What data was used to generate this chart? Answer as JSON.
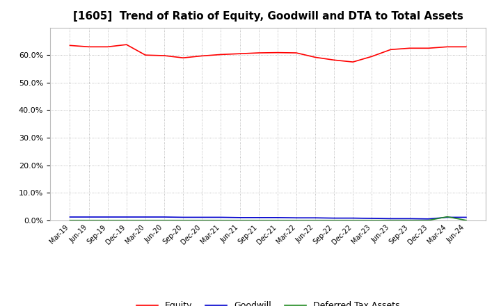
{
  "title": "[1605]  Trend of Ratio of Equity, Goodwill and DTA to Total Assets",
  "labels": [
    "Mar-19",
    "Jun-19",
    "Sep-19",
    "Dec-19",
    "Mar-20",
    "Jun-20",
    "Sep-20",
    "Dec-20",
    "Mar-21",
    "Jun-21",
    "Sep-21",
    "Dec-21",
    "Mar-22",
    "Jun-22",
    "Sep-22",
    "Dec-22",
    "Mar-23",
    "Jun-23",
    "Sep-23",
    "Dec-23",
    "Mar-24",
    "Jun-24"
  ],
  "equity": [
    0.635,
    0.63,
    0.63,
    0.638,
    0.6,
    0.598,
    0.59,
    0.597,
    0.602,
    0.605,
    0.608,
    0.609,
    0.608,
    0.592,
    0.582,
    0.575,
    0.595,
    0.62,
    0.625,
    0.625,
    0.63,
    0.63
  ],
  "goodwill": [
    0.012,
    0.012,
    0.012,
    0.012,
    0.012,
    0.012,
    0.011,
    0.011,
    0.011,
    0.01,
    0.01,
    0.01,
    0.009,
    0.009,
    0.008,
    0.008,
    0.007,
    0.006,
    0.006,
    0.005,
    0.011,
    0.011
  ],
  "dta": [
    0.0,
    0.0,
    0.0,
    0.0,
    0.0,
    0.0,
    0.0,
    0.0,
    0.0,
    0.0,
    0.0,
    0.0,
    0.0,
    0.0,
    0.0,
    0.0,
    0.0,
    0.0,
    0.0,
    0.0,
    0.013,
    0.0
  ],
  "equity_color": "#FF0000",
  "goodwill_color": "#0000CD",
  "dta_color": "#228B22",
  "background_color": "#FFFFFF",
  "plot_bg_color": "#FFFFFF",
  "grid_color": "#aaaaaa",
  "ylim": [
    0.0,
    0.7
  ],
  "yticks": [
    0.0,
    0.1,
    0.2,
    0.3,
    0.4,
    0.5,
    0.6
  ],
  "title_fontsize": 11,
  "legend_labels": [
    "Equity",
    "Goodwill",
    "Deferred Tax Assets"
  ]
}
